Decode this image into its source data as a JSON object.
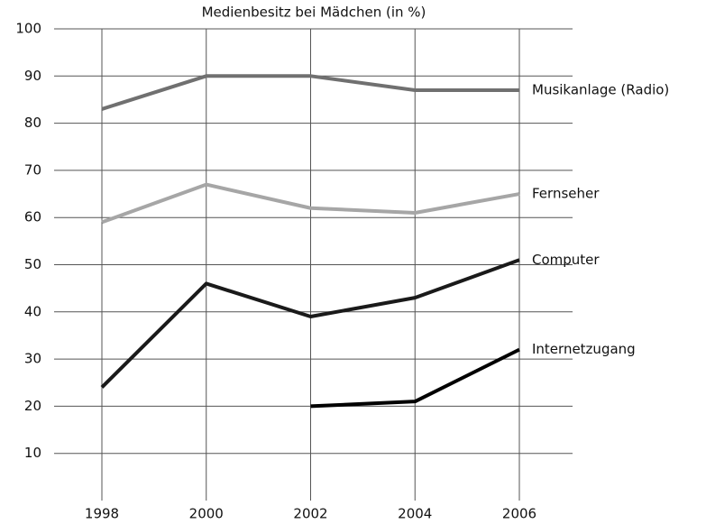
{
  "chart_data": {
    "type": "line",
    "title": "Medienbesitz bei Mädchen (in %)",
    "categories": [
      "1998",
      "2000",
      "2002",
      "2004",
      "2006"
    ],
    "series": [
      {
        "name": "Musikanlage (Radio)",
        "color": "#707070",
        "values": [
          83,
          90,
          90,
          87,
          87
        ]
      },
      {
        "name": "Fernseher",
        "color": "#a6a6a6",
        "values": [
          59,
          67,
          62,
          61,
          65
        ]
      },
      {
        "name": "Computer",
        "color": "#1a1a1a",
        "values": [
          24,
          46,
          39,
          43,
          51
        ]
      },
      {
        "name": "Internetzugang",
        "color": "#000000",
        "values": [
          null,
          null,
          20,
          21,
          32
        ]
      }
    ],
    "ylim": [
      0,
      100
    ],
    "yticks": [
      10,
      20,
      30,
      40,
      50,
      60,
      70,
      80,
      90,
      100
    ],
    "grid": true
  }
}
